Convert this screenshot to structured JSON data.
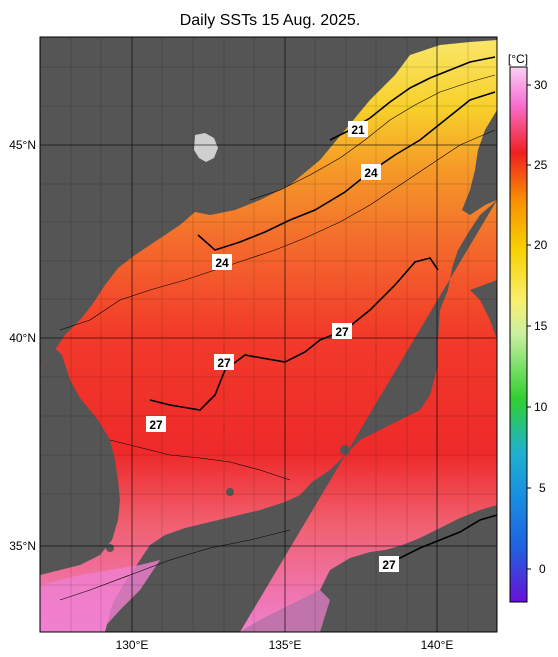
{
  "title": "Daily SSTs 15 Aug. 2025.",
  "map": {
    "lon_ticks": [
      "130°E",
      "135°E",
      "140°E"
    ],
    "lat_ticks": [
      "45°N",
      "40°N",
      "35°N"
    ],
    "contour_labels": [
      "21",
      "24",
      "24",
      "27",
      "27",
      "27",
      "27"
    ]
  },
  "colorbar": {
    "unit": "[°C]",
    "ticks": [
      "30",
      "25",
      "20",
      "15",
      "10",
      "5",
      "0"
    ],
    "colors": [
      "#6a10d8",
      "#2060e0",
      "#20b0d0",
      "#30d030",
      "#c8f0a0",
      "#f8f070",
      "#f8d000",
      "#f89000",
      "#f02020",
      "#f870d0",
      "#fad0f6"
    ]
  }
}
